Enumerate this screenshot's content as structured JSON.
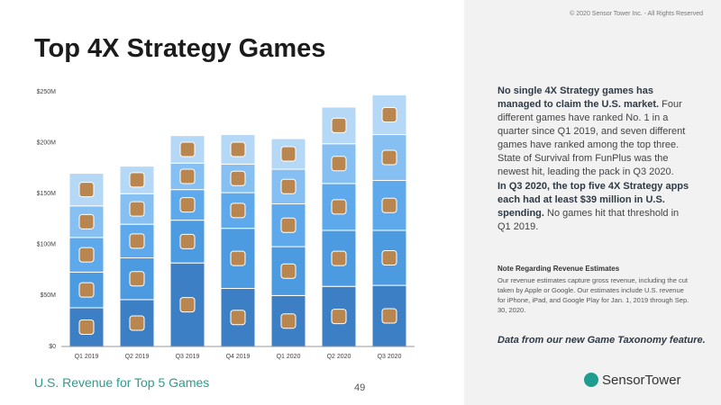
{
  "copyright": "© 2020 Sensor Tower Inc. - All Rights Reserved",
  "title": "Top 4X Strategy Games",
  "caption": "U.S. Revenue for Top 5 Games",
  "page_number": "49",
  "paragraphs": [
    {
      "bold": "No single 4X Strategy games has managed to claim the U.S. market.",
      "text": " Four different games have ranked No. 1 in a quarter since Q1 2019, and seven different games have ranked among the top three. State of Survival from FunPlus was the newest hit, leading the pack in Q3 2020."
    },
    {
      "bold": "In Q3 2020, the top five 4X Strategy apps each had at least $39 million in U.S. spending.",
      "text": " No games hit that threshold in Q1 2019."
    }
  ],
  "note_heading": "Note Regarding Revenue Estimates",
  "note": "Our revenue estimates capture gross revenue, including the cut taken by Apple or Google. Our estimates include U.S. revenue for iPhone, iPad, and Google Play for Jan. 1, 2019 through Sep. 30, 2020.",
  "footnote": "Data from our new Game Taxonomy feature.",
  "logo": "SensorTower",
  "chart_data": {
    "type": "bar",
    "stacked": true,
    "categories": [
      "Q1 2019",
      "Q2 2019",
      "Q3 2019",
      "Q4 2019",
      "Q1 2020",
      "Q2 2020",
      "Q3 2020"
    ],
    "series": [
      {
        "color": "#3d7fc4",
        "values": [
          38,
          46,
          82,
          57,
          50,
          59,
          60
        ]
      },
      {
        "color": "#4c9be0",
        "values": [
          35,
          41,
          42,
          59,
          48,
          55,
          54
        ]
      },
      {
        "color": "#5ea9ec",
        "values": [
          34,
          33,
          30,
          35,
          42,
          46,
          49
        ]
      },
      {
        "color": "#86c0f2",
        "values": [
          31,
          30,
          26,
          28,
          34,
          39,
          45
        ]
      },
      {
        "color": "#b5d8f7",
        "values": [
          32,
          27,
          27,
          29,
          30,
          36,
          39
        ]
      }
    ],
    "ylim": [
      0,
      250
    ],
    "yticks": [
      {
        "value": 0,
        "label": "$0"
      },
      {
        "value": 50,
        "label": "$50M"
      },
      {
        "value": 100,
        "label": "$100M"
      },
      {
        "value": 150,
        "label": "$150M"
      },
      {
        "value": 200,
        "label": "$200M"
      },
      {
        "value": 250,
        "label": "$250M"
      }
    ],
    "grid": false
  }
}
